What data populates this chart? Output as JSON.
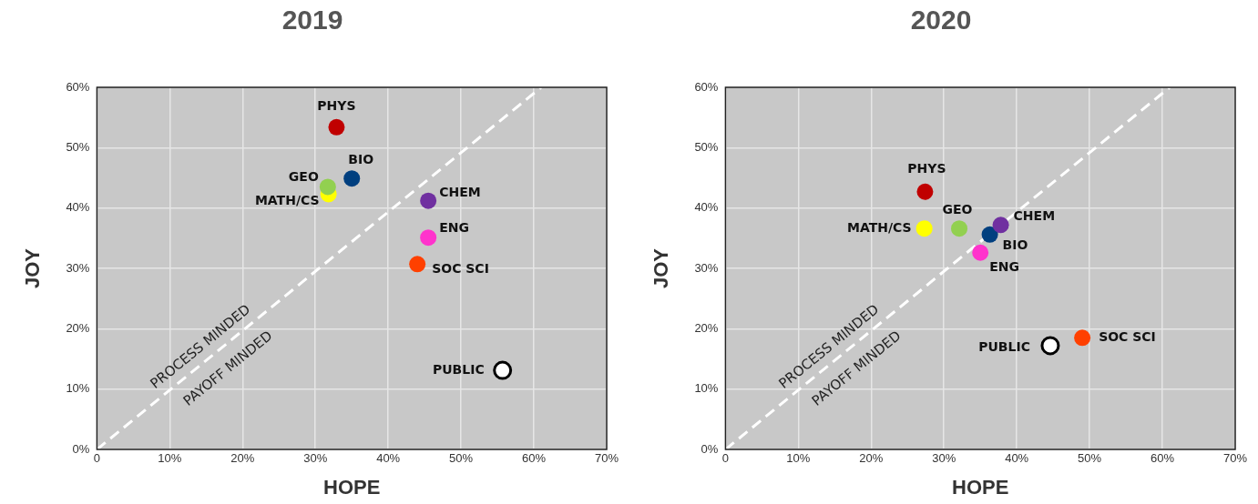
{
  "chart_data": [
    {
      "type": "scatter",
      "title": "2019",
      "xlabel": "HOPE",
      "ylabel": "JOY",
      "xlim": [
        0,
        70
      ],
      "ylim": [
        0,
        60
      ],
      "xticks": [
        {
          "value": 0,
          "label": "0"
        },
        {
          "value": 10,
          "label": "10%"
        },
        {
          "value": 20,
          "label": "20%"
        },
        {
          "value": 30,
          "label": "30%"
        },
        {
          "value": 40,
          "label": "40%"
        },
        {
          "value": 50,
          "label": "50%"
        },
        {
          "value": 60,
          "label": "60%"
        },
        {
          "value": 70,
          "label": "70%"
        }
      ],
      "yticks": [
        {
          "value": 0,
          "label": "0%"
        },
        {
          "value": 10,
          "label": "10%"
        },
        {
          "value": 20,
          "label": "20%"
        },
        {
          "value": 30,
          "label": "30%"
        },
        {
          "value": 40,
          "label": "40%"
        },
        {
          "value": 50,
          "label": "50%"
        },
        {
          "value": 60,
          "label": "60%"
        }
      ],
      "grid": true,
      "legend": false,
      "marker": "circle",
      "annotations": [
        "PROCESS MINDED",
        "PAYOFF MINDED"
      ],
      "series": [
        {
          "name": "PHYS",
          "color": "#c00000",
          "x": [
            32.9
          ],
          "values": [
            53.4
          ]
        },
        {
          "name": "BIO",
          "color": "#003f7f",
          "x": [
            35.0
          ],
          "values": [
            44.9
          ]
        },
        {
          "name": "GEO",
          "color": "#92d050",
          "x": [
            31.7
          ],
          "values": [
            43.5
          ]
        },
        {
          "name": "MATH/CS",
          "color": "#ffff00",
          "x": [
            31.8
          ],
          "values": [
            42.3
          ]
        },
        {
          "name": "CHEM",
          "color": "#7030a0",
          "x": [
            45.5
          ],
          "values": [
            41.2
          ]
        },
        {
          "name": "ENG",
          "color": "#ff33cc",
          "x": [
            45.5
          ],
          "values": [
            35.1
          ]
        },
        {
          "name": "SOC SCI",
          "color": "#ff4000",
          "x": [
            44.0
          ],
          "values": [
            30.7
          ]
        },
        {
          "name": "PUBLIC",
          "color": "#ffffff",
          "x": [
            55.7
          ],
          "values": [
            13.1
          ]
        },
        {
          "type": "line",
          "color": "#ffffff",
          "line_style": "dashed",
          "marker": "none",
          "x": [
            0,
            61
          ],
          "values": [
            0,
            60
          ]
        }
      ]
    },
    {
      "type": "scatter",
      "title": "2020",
      "xlabel": "HOPE",
      "ylabel": "JOY",
      "xlim": [
        0,
        70
      ],
      "ylim": [
        0,
        60
      ],
      "xticks": [
        {
          "value": 0,
          "label": "0"
        },
        {
          "value": 10,
          "label": "10%"
        },
        {
          "value": 20,
          "label": "20%"
        },
        {
          "value": 30,
          "label": "30%"
        },
        {
          "value": 40,
          "label": "40%"
        },
        {
          "value": 50,
          "label": "50%"
        },
        {
          "value": 60,
          "label": "60%"
        },
        {
          "value": 70,
          "label": "70%"
        }
      ],
      "yticks": [
        {
          "value": 0,
          "label": "0%"
        },
        {
          "value": 10,
          "label": "10%"
        },
        {
          "value": 20,
          "label": "20%"
        },
        {
          "value": 30,
          "label": "30%"
        },
        {
          "value": 40,
          "label": "40%"
        },
        {
          "value": 50,
          "label": "50%"
        },
        {
          "value": 60,
          "label": "60%"
        }
      ],
      "grid": true,
      "legend": false,
      "marker": "circle",
      "annotations": [
        "PROCESS MINDED",
        "PAYOFF MINDED"
      ],
      "series": [
        {
          "name": "PHYS",
          "color": "#c00000",
          "x": [
            27.4
          ],
          "values": [
            42.7
          ]
        },
        {
          "name": "MATH/CS",
          "color": "#ffff00",
          "x": [
            27.3
          ],
          "values": [
            36.6
          ]
        },
        {
          "name": "GEO",
          "color": "#92d050",
          "x": [
            32.1
          ],
          "values": [
            36.6
          ]
        },
        {
          "name": "CHEM",
          "color": "#7030a0",
          "x": [
            37.8
          ],
          "values": [
            37.2
          ]
        },
        {
          "name": "BIO",
          "color": "#003f7f",
          "x": [
            36.3
          ],
          "values": [
            35.6
          ]
        },
        {
          "name": "ENG",
          "color": "#ff33cc",
          "x": [
            35.0
          ],
          "values": [
            32.6
          ]
        },
        {
          "name": "SOC SCI",
          "color": "#ff4000",
          "x": [
            49.0
          ],
          "values": [
            18.5
          ]
        },
        {
          "name": "PUBLIC",
          "color": "#ffffff",
          "x": [
            44.6
          ],
          "values": [
            17.2
          ]
        },
        {
          "type": "line",
          "color": "#ffffff",
          "line_style": "dashed",
          "marker": "none",
          "x": [
            0,
            61
          ],
          "values": [
            0,
            60
          ]
        }
      ]
    }
  ]
}
